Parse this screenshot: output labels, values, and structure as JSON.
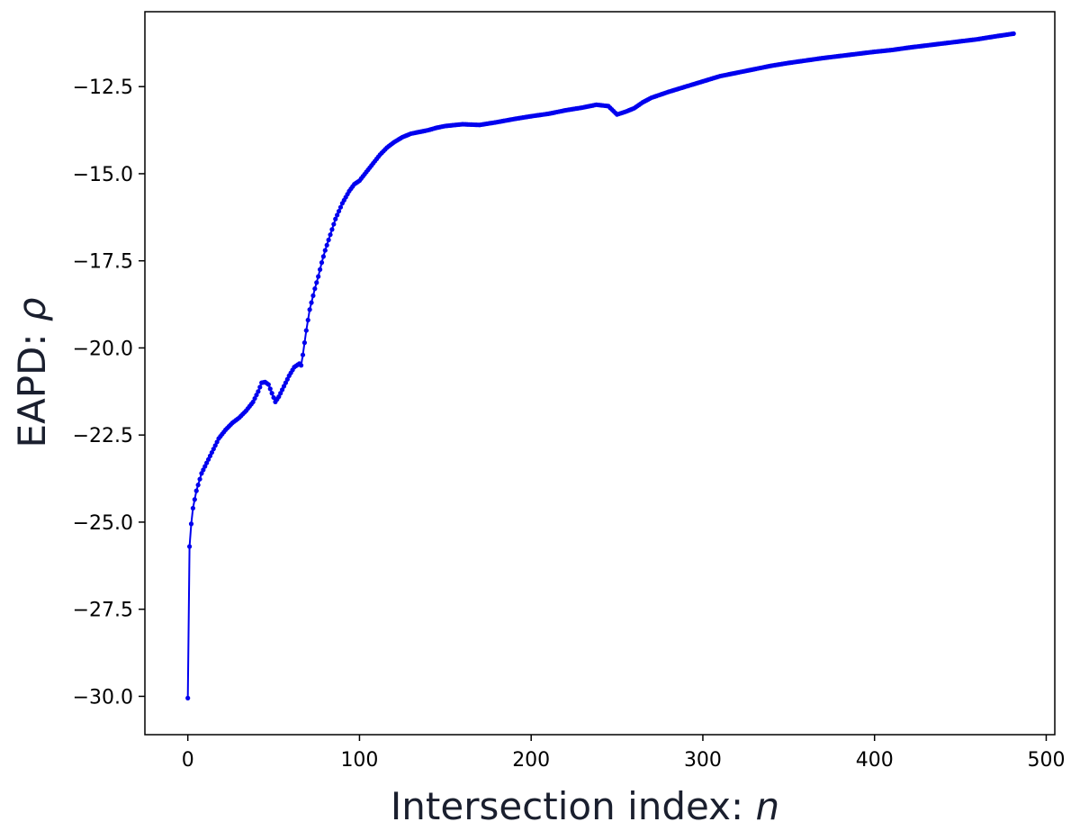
{
  "chart_data": {
    "type": "line",
    "title": "",
    "xlabel_text": "Intersection index: ",
    "xlabel_var": "n",
    "ylabel_text": "EAPD: ",
    "ylabel_var": "ρ",
    "xlim": [
      -25,
      505
    ],
    "ylim": [
      -31.1,
      -10.35
    ],
    "xticks": [
      0,
      100,
      200,
      300,
      400,
      500
    ],
    "xtick_labels": [
      "0",
      "100",
      "200",
      "300",
      "400",
      "500"
    ],
    "yticks": [
      -30.0,
      -27.5,
      -25.0,
      -22.5,
      -20.0,
      -17.5,
      -15.0,
      -12.5
    ],
    "ytick_labels": [
      "−30.0",
      "−27.5",
      "−25.0",
      "−22.5",
      "−20.0",
      "−17.5",
      "−15.0",
      "−12.5"
    ],
    "grid": false,
    "line_color": "#0000ee",
    "marker": "circle",
    "n_points": 482,
    "series": [
      {
        "keypoints": [
          [
            0,
            -30.05
          ],
          [
            1,
            -25.7
          ],
          [
            2,
            -25.05
          ],
          [
            3,
            -24.6
          ],
          [
            5,
            -24.1
          ],
          [
            8,
            -23.6
          ],
          [
            12,
            -23.2
          ],
          [
            15,
            -22.9
          ],
          [
            18,
            -22.6
          ],
          [
            22,
            -22.35
          ],
          [
            26,
            -22.15
          ],
          [
            30,
            -22.0
          ],
          [
            34,
            -21.8
          ],
          [
            38,
            -21.55
          ],
          [
            41,
            -21.25
          ],
          [
            43,
            -21.0
          ],
          [
            45,
            -20.98
          ],
          [
            47,
            -21.05
          ],
          [
            49,
            -21.3
          ],
          [
            51,
            -21.55
          ],
          [
            53,
            -21.4
          ],
          [
            56,
            -21.1
          ],
          [
            59,
            -20.8
          ],
          [
            62,
            -20.55
          ],
          [
            65,
            -20.45
          ],
          [
            66,
            -20.5
          ],
          [
            67,
            -20.2
          ],
          [
            69,
            -19.5
          ],
          [
            71,
            -18.9
          ],
          [
            74,
            -18.3
          ],
          [
            76,
            -17.95
          ],
          [
            78,
            -17.55
          ],
          [
            80,
            -17.2
          ],
          [
            83,
            -16.75
          ],
          [
            86,
            -16.3
          ],
          [
            90,
            -15.85
          ],
          [
            94,
            -15.5
          ],
          [
            97,
            -15.3
          ],
          [
            100,
            -15.2
          ],
          [
            104,
            -14.95
          ],
          [
            108,
            -14.7
          ],
          [
            112,
            -14.45
          ],
          [
            116,
            -14.25
          ],
          [
            120,
            -14.1
          ],
          [
            125,
            -13.95
          ],
          [
            130,
            -13.85
          ],
          [
            135,
            -13.8
          ],
          [
            140,
            -13.75
          ],
          [
            145,
            -13.68
          ],
          [
            150,
            -13.63
          ],
          [
            160,
            -13.58
          ],
          [
            170,
            -13.6
          ],
          [
            180,
            -13.52
          ],
          [
            190,
            -13.43
          ],
          [
            200,
            -13.35
          ],
          [
            210,
            -13.28
          ],
          [
            220,
            -13.18
          ],
          [
            230,
            -13.1
          ],
          [
            238,
            -13.02
          ],
          [
            245,
            -13.06
          ],
          [
            250,
            -13.3
          ],
          [
            255,
            -13.22
          ],
          [
            260,
            -13.12
          ],
          [
            265,
            -12.95
          ],
          [
            270,
            -12.82
          ],
          [
            280,
            -12.65
          ],
          [
            290,
            -12.5
          ],
          [
            300,
            -12.35
          ],
          [
            310,
            -12.2
          ],
          [
            320,
            -12.1
          ],
          [
            330,
            -12.0
          ],
          [
            340,
            -11.9
          ],
          [
            350,
            -11.82
          ],
          [
            360,
            -11.75
          ],
          [
            370,
            -11.68
          ],
          [
            380,
            -11.62
          ],
          [
            390,
            -11.56
          ],
          [
            400,
            -11.5
          ],
          [
            410,
            -11.45
          ],
          [
            420,
            -11.38
          ],
          [
            430,
            -11.32
          ],
          [
            440,
            -11.26
          ],
          [
            450,
            -11.2
          ],
          [
            460,
            -11.14
          ],
          [
            470,
            -11.06
          ],
          [
            481,
            -10.98
          ]
        ]
      }
    ]
  }
}
